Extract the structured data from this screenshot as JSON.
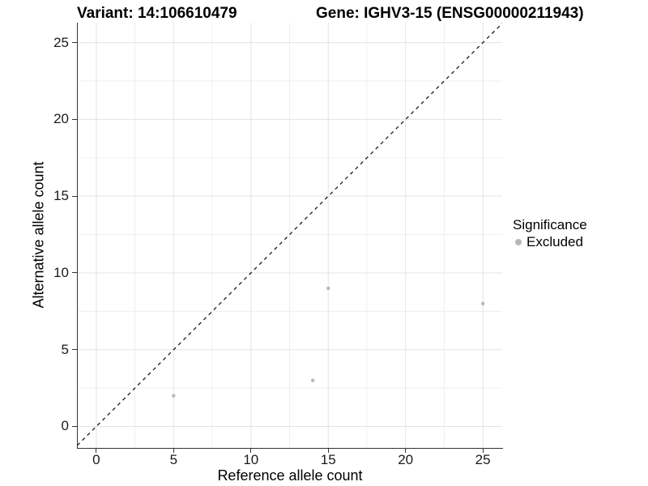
{
  "title_left": "Variant: 14:106610479",
  "title_right": "Gene: IGHV3-15 (ENSG00000211943)",
  "chart_data": {
    "type": "scatter",
    "title": "Variant: 14:106610479  /  Gene: IGHV3-15 (ENSG00000211943)",
    "xlabel": "Reference allele count",
    "ylabel": "Alternative allele count",
    "xlim": [
      -1.2,
      26.25
    ],
    "ylim": [
      -1.4,
      26.3
    ],
    "xticks": [
      0,
      5,
      10,
      15,
      20,
      25
    ],
    "yticks": [
      0,
      5,
      10,
      15,
      20,
      25
    ],
    "xminor": [
      2.5,
      7.5,
      12.5,
      17.5,
      22.5
    ],
    "yminor": [
      2.5,
      7.5,
      12.5,
      17.5,
      22.5
    ],
    "grid": true,
    "point_radius": 2.2,
    "series": [
      {
        "name": "Excluded",
        "color": "#b8b8b8",
        "points": [
          [
            5,
            2
          ],
          [
            14,
            3
          ],
          [
            15,
            9
          ],
          [
            25,
            8
          ]
        ]
      }
    ],
    "identity_line": {
      "slope": 1,
      "intercept": 0,
      "style": "dashed"
    },
    "legend": {
      "title": "Significance",
      "position": "right",
      "items": [
        {
          "label": "Excluded",
          "color": "#b8b8b8"
        }
      ]
    }
  },
  "colors": {
    "background": "#ffffff",
    "grid_major": "#e3e3e3",
    "grid_minor": "#efefef",
    "axis": "#333333",
    "dashed_line": "#1a1a1a",
    "point": "#b8b8b8",
    "tick_text": "#1a1a1a"
  }
}
